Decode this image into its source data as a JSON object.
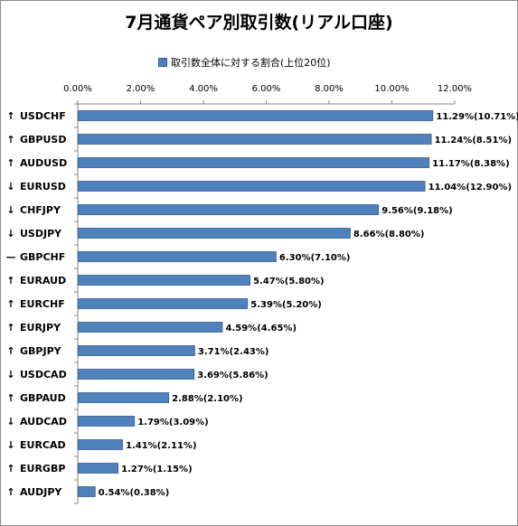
{
  "chart_data": {
    "type": "bar",
    "orientation": "horizontal",
    "title": "7月通貨ペア別取引数(リアル口座)",
    "legend": {
      "label": "取引数全体に対する割合(上位20位)",
      "placement": "top"
    },
    "xlim": [
      0,
      12
    ],
    "x_ticks": [
      "0.00%",
      "2.00%",
      "4.00%",
      "6.00%",
      "8.00%",
      "10.00%",
      "12.00%"
    ],
    "grid": false,
    "bar_color": "#4f81bd",
    "categories": [
      {
        "name": "USDCHF",
        "trend": "↑",
        "value": 11.29,
        "label": "11.29%(10.71%)"
      },
      {
        "name": "GBPUSD",
        "trend": "↑",
        "value": 11.24,
        "label": "11.24%(8.51%)"
      },
      {
        "name": "AUDUSD",
        "trend": "↑",
        "value": 11.17,
        "label": "11.17%(8.38%)"
      },
      {
        "name": "EURUSD",
        "trend": "↓",
        "value": 11.04,
        "label": "11.04%(12.90%)"
      },
      {
        "name": "CHFJPY",
        "trend": "↓",
        "value": 9.56,
        "label": "9.56%(9.18%)"
      },
      {
        "name": "USDJPY",
        "trend": "↓",
        "value": 8.66,
        "label": "8.66%(8.80%)"
      },
      {
        "name": "GBPCHF",
        "trend": "—",
        "value": 6.3,
        "label": "6.30%(7.10%)"
      },
      {
        "name": "EURAUD",
        "trend": "↑",
        "value": 5.47,
        "label": "5.47%(5.80%)"
      },
      {
        "name": "EURCHF",
        "trend": "↑",
        "value": 5.39,
        "label": "5.39%(5.20%)"
      },
      {
        "name": "EURJPY",
        "trend": "↑",
        "value": 4.59,
        "label": "4.59%(4.65%)"
      },
      {
        "name": "GBPJPY",
        "trend": "↑",
        "value": 3.71,
        "label": "3.71%(2.43%)"
      },
      {
        "name": "USDCAD",
        "trend": "↓",
        "value": 3.69,
        "label": "3.69%(5.86%)"
      },
      {
        "name": "GBPAUD",
        "trend": "↑",
        "value": 2.88,
        "label": "2.88%(2.10%)"
      },
      {
        "name": "AUDCAD",
        "trend": "↓",
        "value": 1.79,
        "label": "1.79%(3.09%)"
      },
      {
        "name": "EURCAD",
        "trend": "↓",
        "value": 1.41,
        "label": "1.41%(2.11%)"
      },
      {
        "name": "EURGBP",
        "trend": "↑",
        "value": 1.27,
        "label": "1.27%(1.15%)"
      },
      {
        "name": "AUDJPY",
        "trend": "↑",
        "value": 0.54,
        "label": "0.54%(0.38%)"
      }
    ],
    "trend_colors": {
      "↑": "#e00000",
      "↓": "#0000c0",
      "—": "#000000"
    }
  }
}
